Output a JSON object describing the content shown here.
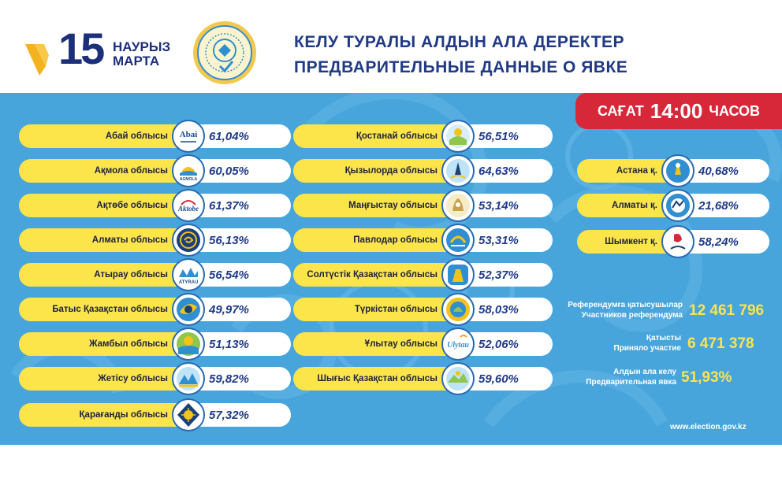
{
  "header": {
    "logo_number": "15",
    "logo_month_kk": "НАУРЫЗ",
    "logo_month_ru": "МАРТА",
    "title_kk": "КЕЛУ ТУРАЛЫ АЛДЫН АЛА ДЕРЕКТЕР",
    "title_ru": "ПРЕДВАРИТЕЛЬНЫЕ ДАННЫЕ О ЯВКЕ",
    "emblem_icon": "election-commission-emblem-icon"
  },
  "time_badge": {
    "word_kk": "САҒАТ",
    "time": "14:00",
    "word_ru": "ЧАСОВ"
  },
  "regions_col1": [
    {
      "name": "Абай облысы",
      "value": "61,04%",
      "icon": "abai-emblem-icon"
    },
    {
      "name": "Ақмола облысы",
      "value": "60,05%",
      "icon": "akmola-emblem-icon"
    },
    {
      "name": "Ақтөбе облысы",
      "value": "61,37%",
      "icon": "aktobe-emblem-icon"
    },
    {
      "name": "Алматы облысы",
      "value": "56,13%",
      "icon": "almaty-region-emblem-icon"
    },
    {
      "name": "Атырау  облысы",
      "value": "56,54%",
      "icon": "atyrau-emblem-icon"
    },
    {
      "name": "Батыс Қазақстан облысы",
      "value": "49,97%",
      "icon": "west-kazakhstan-emblem-icon"
    },
    {
      "name": "Жамбыл облысы",
      "value": "51,13%",
      "icon": "zhambyl-emblem-icon"
    },
    {
      "name": "Жетісу облысы",
      "value": "59,82%",
      "icon": "zhetisu-emblem-icon"
    },
    {
      "name": "Қарағанды облысы",
      "value": "57,32%",
      "icon": "karaganda-emblem-icon"
    }
  ],
  "regions_col2": [
    {
      "name": "Қостанай облысы",
      "value": "56,51%",
      "icon": "kostanay-emblem-icon"
    },
    {
      "name": "Қызылорда облысы",
      "value": "64,63%",
      "icon": "kyzylorda-emblem-icon"
    },
    {
      "name": "Маңғыстау облысы",
      "value": "53,14%",
      "icon": "mangystau-emblem-icon"
    },
    {
      "name": "Павлодар облысы",
      "value": "53,31%",
      "icon": "pavlodar-emblem-icon"
    },
    {
      "name": "Солтүстік Қазақстан облысы",
      "value": "52,37%",
      "icon": "north-kazakhstan-emblem-icon"
    },
    {
      "name": "Түркістан облысы",
      "value": "58,03%",
      "icon": "turkistan-emblem-icon"
    },
    {
      "name": "Ұлытау облысы",
      "value": "52,06%",
      "icon": "ulytau-emblem-icon"
    },
    {
      "name": "Шығыс Қазақстан облысы",
      "value": "59,60%",
      "icon": "east-kazakhstan-emblem-icon"
    }
  ],
  "cities": [
    {
      "name": "Астана  қ.",
      "value": "40,68%",
      "icon": "astana-emblem-icon"
    },
    {
      "name": "Алматы  қ.",
      "value": "21,68%",
      "icon": "almaty-city-emblem-icon"
    },
    {
      "name": "Шымкент қ.",
      "value": "58,24%",
      "icon": "shymkent-emblem-icon"
    }
  ],
  "stats": {
    "participants_kk": "Референдумға қатысушылар",
    "participants_ru": "Участников референдума",
    "participants_value": "12 461 796",
    "took_part_kk": "Қатысты",
    "took_part_ru": "Приняло участие",
    "took_part_value": "6 471 378",
    "turnout_kk": "Алдын ала келу",
    "turnout_ru": "Предварительная явка",
    "turnout_value": "51,93%"
  },
  "website": "www.election.gov.kz",
  "colors": {
    "board_blue": "#48a5dc",
    "pill_yellow": "#fce44b",
    "badge_red": "#d7283a",
    "title_navy": "#213a86",
    "value_blue": "#1f3a8a",
    "logo_gold": "#f2b31e"
  }
}
